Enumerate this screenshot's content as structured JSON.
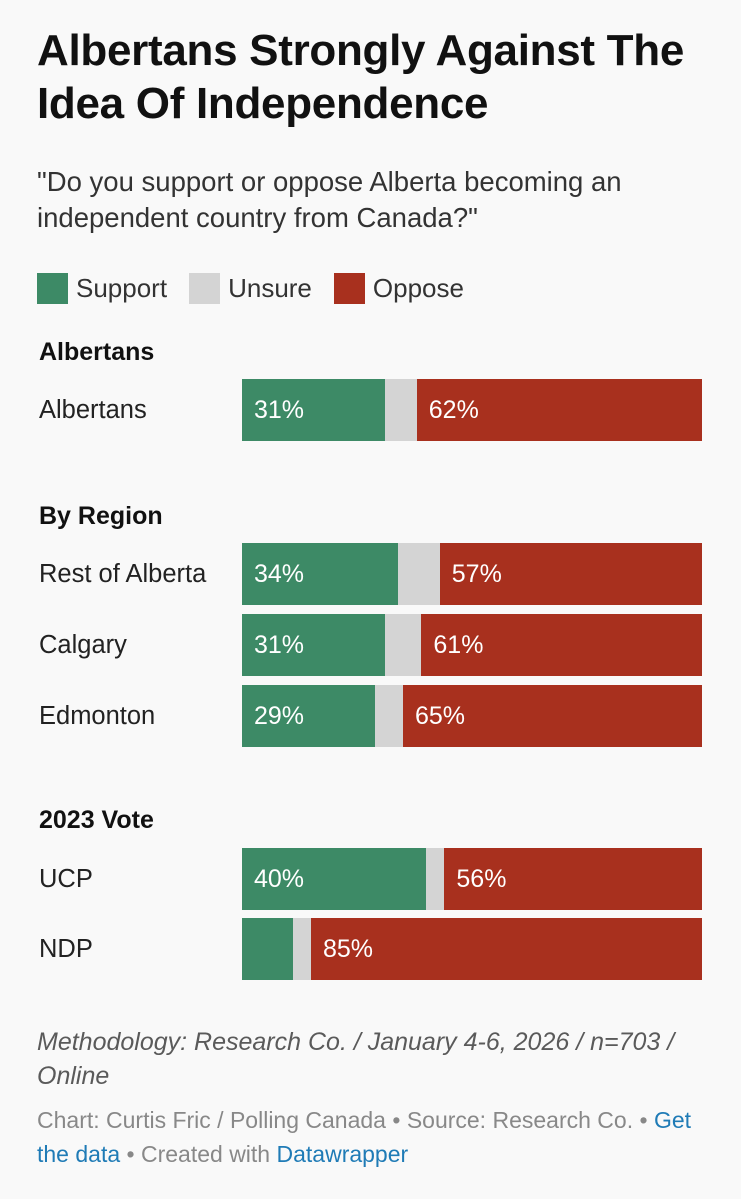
{
  "title": "Albertans Strongly Against The Idea Of Independence",
  "subtitle": "\"Do you support or oppose Alberta becoming an independent country from Canada?\"",
  "chart_data": {
    "type": "bar",
    "orientation": "horizontal",
    "stacked": true,
    "legend": [
      {
        "name": "Support",
        "color": "#3d8a66"
      },
      {
        "name": "Unsure",
        "color": "#d4d4d4"
      },
      {
        "name": "Oppose",
        "color": "#a8301e"
      }
    ],
    "groups": [
      {
        "heading": "Albertans",
        "rows": [
          {
            "label": "Albertans",
            "support": 31,
            "unsure": 7,
            "oppose": 62,
            "support_label": "31%",
            "oppose_label": "62%"
          }
        ]
      },
      {
        "heading": "By Region",
        "rows": [
          {
            "label": "Rest of Alberta",
            "support": 34,
            "unsure": 9,
            "oppose": 57,
            "support_label": "34%",
            "oppose_label": "57%"
          },
          {
            "label": "Calgary",
            "support": 31,
            "unsure": 8,
            "oppose": 61,
            "support_label": "31%",
            "oppose_label": "61%"
          },
          {
            "label": "Edmonton",
            "support": 29,
            "unsure": 6,
            "oppose": 65,
            "support_label": "29%",
            "oppose_label": "65%"
          }
        ]
      },
      {
        "heading": "2023 Vote",
        "rows": [
          {
            "label": "UCP",
            "support": 40,
            "unsure": 4,
            "oppose": 56,
            "support_label": "40%",
            "oppose_label": "56%"
          },
          {
            "label": "NDP",
            "support": 11,
            "unsure": 4,
            "oppose": 85,
            "support_label": "",
            "oppose_label": "85%"
          }
        ]
      }
    ],
    "xlim": [
      0,
      100
    ]
  },
  "methodology": "Methodology: Research Co. / January 4-6, 2026 / n=703 / Online",
  "footer": {
    "chart_credit": "Chart: Curtis Fric / Polling Canada",
    "separator": "•",
    "source": "Source: Research Co.",
    "get_data": "Get the data",
    "created_with": "Created with",
    "datawrapper": "Datawrapper"
  }
}
